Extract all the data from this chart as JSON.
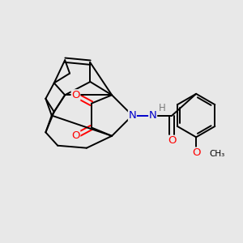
{
  "bg_color": "#e8e8e8",
  "bond_color": "#000000",
  "N_color": "#0000cc",
  "O_color": "#ff0000",
  "H_color": "#7a7a7a",
  "lw": 1.4,
  "figsize": [
    3.0,
    3.0
  ],
  "dpi": 100,
  "xlim": [
    0.0,
    1.0
  ],
  "ylim": [
    0.0,
    1.0
  ]
}
